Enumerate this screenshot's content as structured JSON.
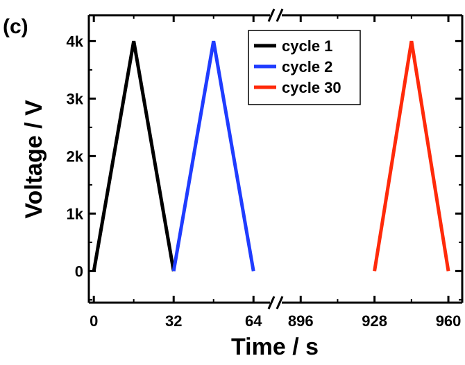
{
  "panel_label": "(c)",
  "chart_data": {
    "type": "line",
    "xlabel": "Time / s",
    "ylabel": "Voltage / V",
    "ylim": [
      -550,
      4450
    ],
    "yticks": [
      {
        "value": 0,
        "label": "0"
      },
      {
        "value": 1000,
        "label": "1k"
      },
      {
        "value": 2000,
        "label": "2k"
      },
      {
        "value": 3000,
        "label": "3k"
      },
      {
        "value": 4000,
        "label": "4k"
      }
    ],
    "x_axis_broken": true,
    "x_segments": [
      {
        "range": [
          -2,
          72
        ],
        "ticks": [
          0,
          32,
          64
        ]
      },
      {
        "range": [
          886,
          966
        ],
        "ticks": [
          896,
          928,
          960
        ]
      }
    ],
    "legend_position": "top-center",
    "grid": false,
    "series": [
      {
        "name": "cycle 1",
        "color": "#000000",
        "x": [
          0,
          16,
          32
        ],
        "y": [
          0,
          4000,
          0
        ]
      },
      {
        "name": "cycle 2",
        "color": "#1f3cff",
        "x": [
          32,
          48,
          64
        ],
        "y": [
          0,
          4000,
          0
        ]
      },
      {
        "name": "cycle 30",
        "color": "#ff2a0a",
        "x": [
          928,
          944,
          960
        ],
        "y": [
          0,
          4000,
          0
        ]
      }
    ]
  }
}
